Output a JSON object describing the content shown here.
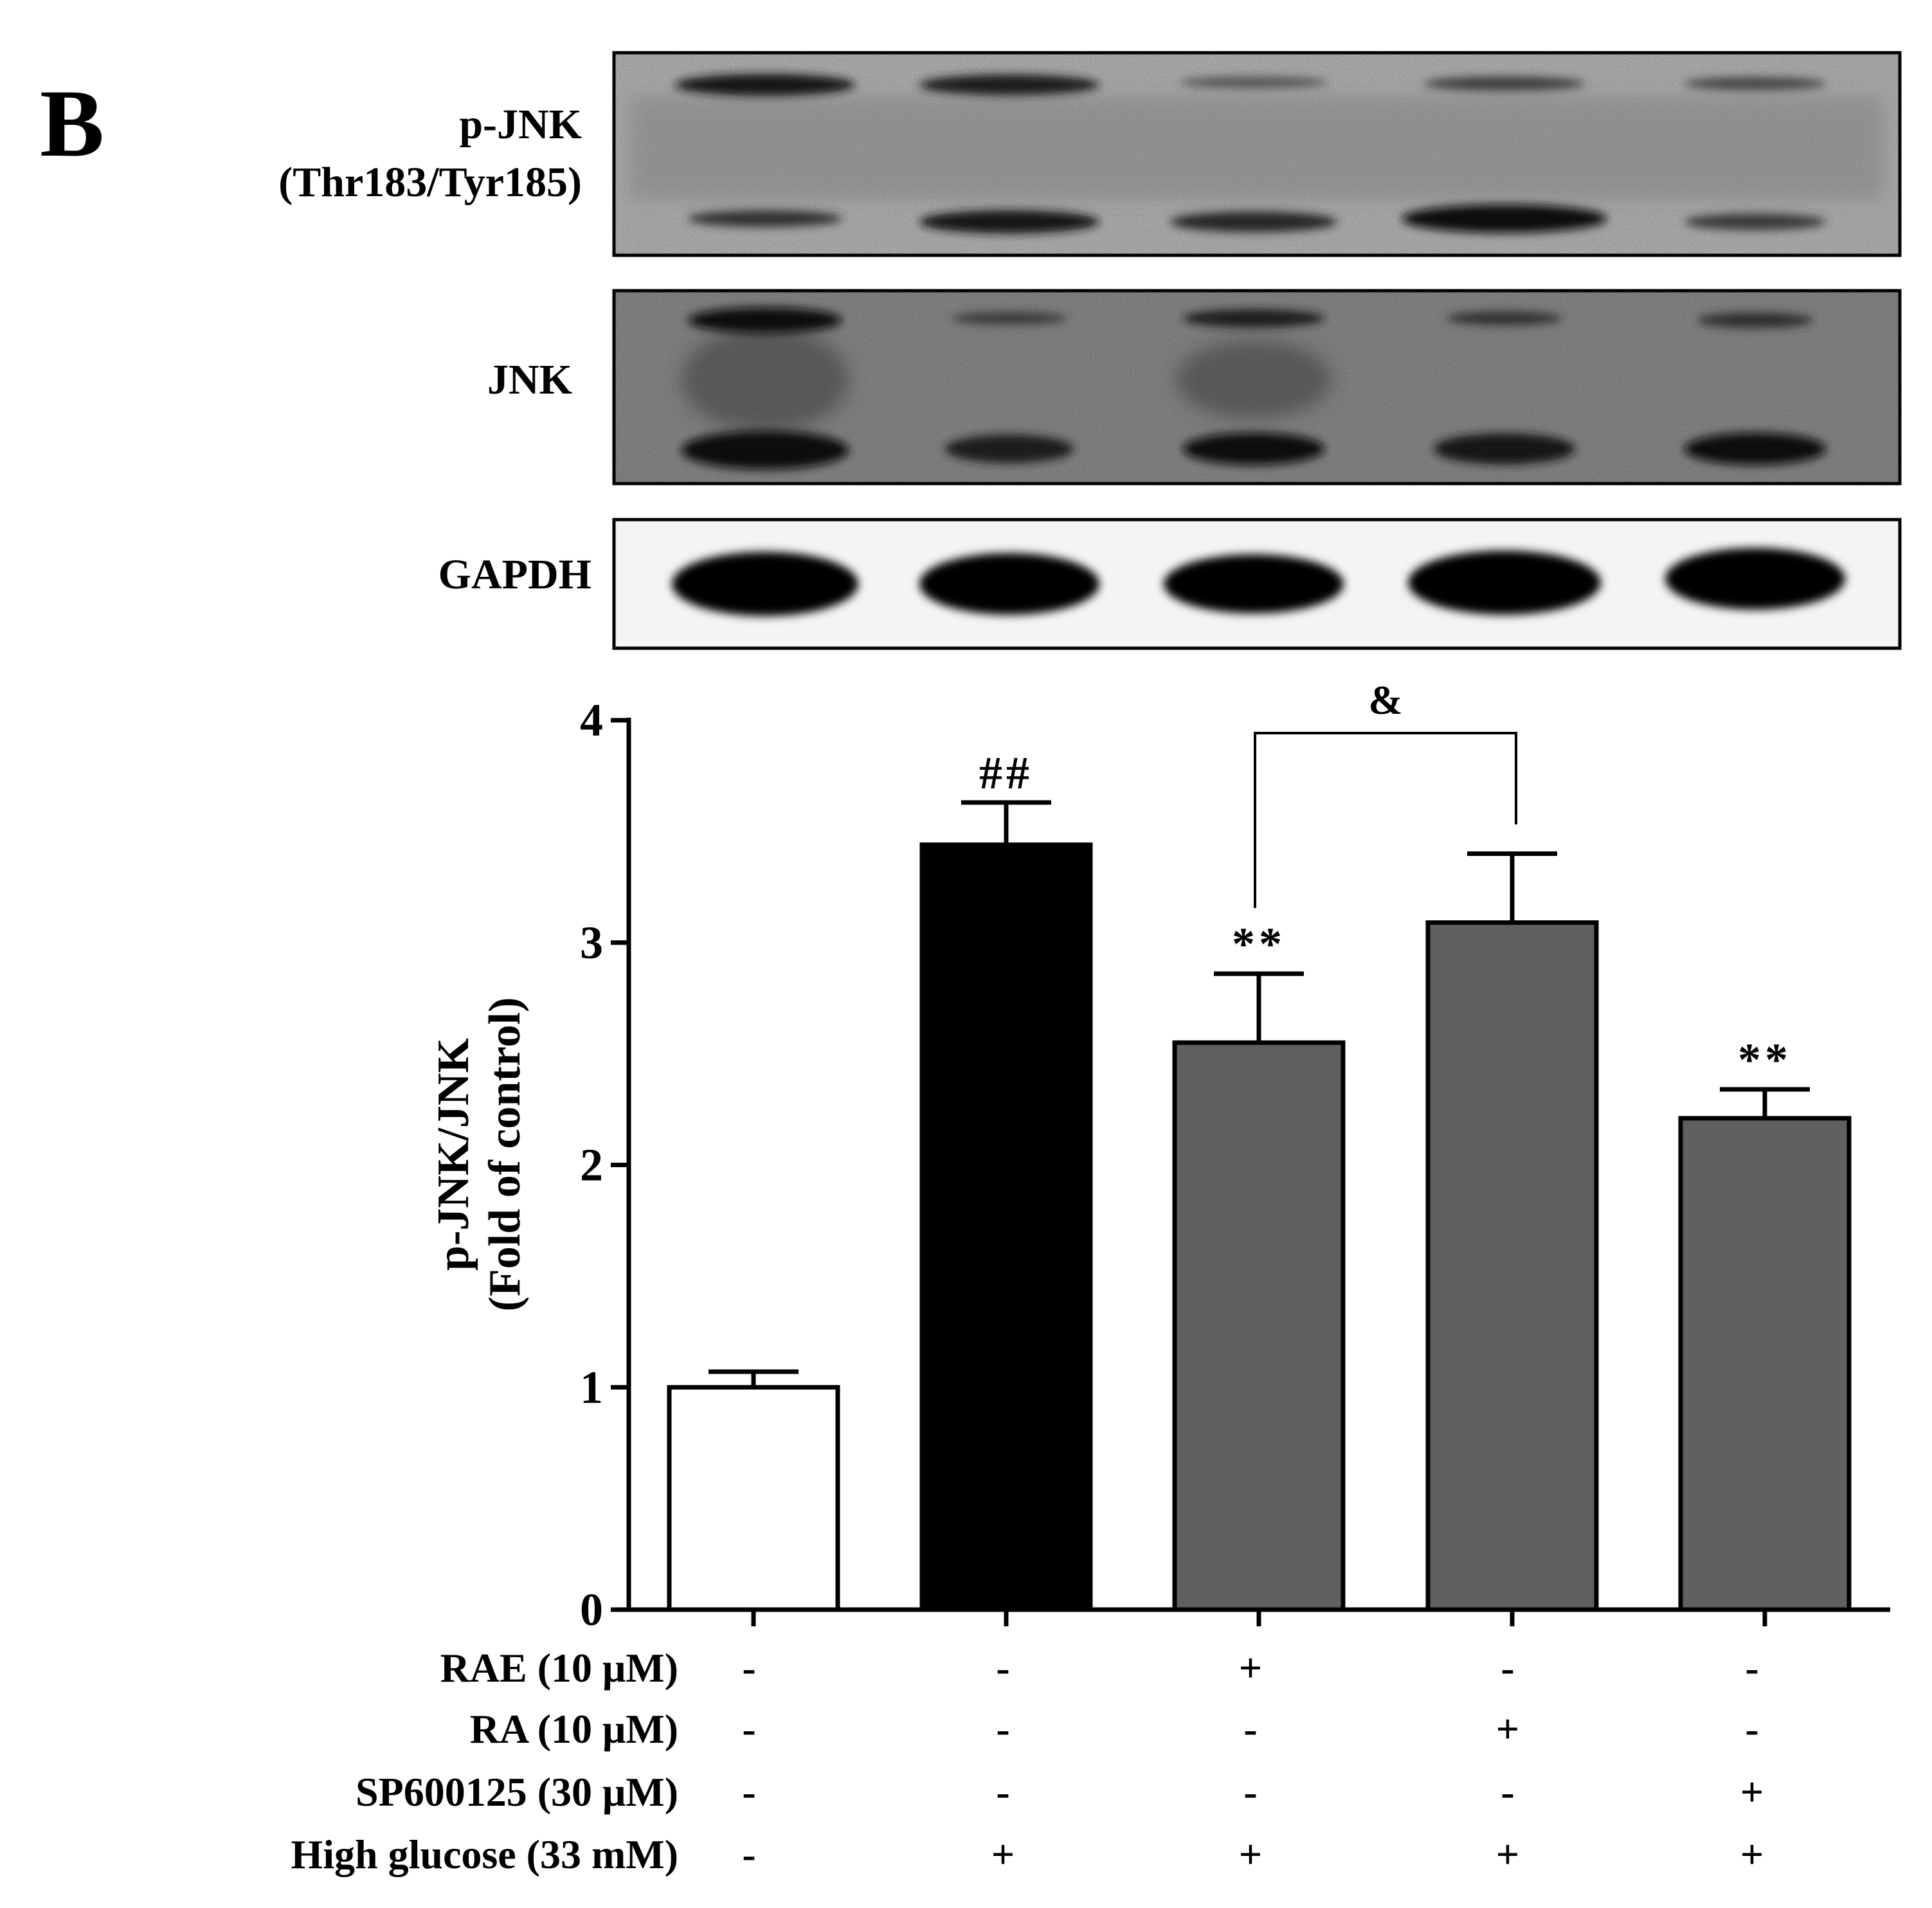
{
  "panel_label": "B",
  "blots": [
    {
      "label_lines": [
        "p-JNK",
        "(Thr183/Tyr185)"
      ]
    },
    {
      "label_lines": [
        "JNK"
      ]
    },
    {
      "label_lines": [
        "GAPDH"
      ]
    }
  ],
  "chart_data": {
    "type": "bar",
    "title": "",
    "ylabel_lines": [
      "p-JNK/JNK",
      "(Fold of control)"
    ],
    "ylim": [
      0,
      4
    ],
    "yticks": [
      "0",
      "1",
      "2",
      "3",
      "4"
    ],
    "bars": [
      {
        "value": 1.0,
        "error": 0.07,
        "color": "#ffffff",
        "annotation": ""
      },
      {
        "value": 3.44,
        "error": 0.19,
        "color": "#000000",
        "annotation": "##"
      },
      {
        "value": 2.55,
        "error": 0.31,
        "color": "#606060",
        "annotation": "**"
      },
      {
        "value": 3.09,
        "error": 0.31,
        "color": "#606060",
        "annotation": ""
      },
      {
        "value": 2.21,
        "error": 0.13,
        "color": "#606060",
        "annotation": "**"
      }
    ],
    "bracket": {
      "from_bar": 2,
      "to_bar": 3,
      "label": "&"
    },
    "conditions": [
      {
        "label": "RAE (10 μM)",
        "values": [
          "-",
          "-",
          "+",
          "-",
          "-"
        ]
      },
      {
        "label": "RA (10 μM)",
        "values": [
          "-",
          "-",
          "-",
          "+",
          "-"
        ]
      },
      {
        "label": "SP600125 (30 μM)",
        "values": [
          "-",
          "-",
          "-",
          "-",
          "+"
        ]
      },
      {
        "label": "High glucose (33 mM)",
        "values": [
          "-",
          "+",
          "+",
          "+",
          "+"
        ]
      }
    ]
  }
}
